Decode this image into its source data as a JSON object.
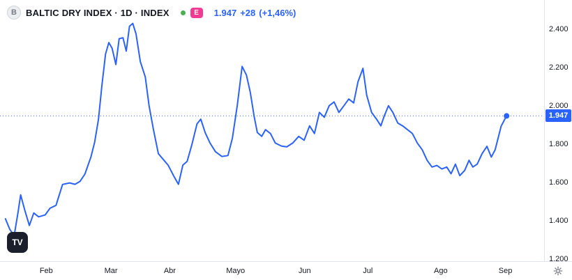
{
  "header": {
    "symbol_badge": "B",
    "title": "BALTIC DRY INDEX · 1D · INDEX",
    "data_flag": "E",
    "price": "1.947",
    "change": "+28",
    "change_pct": "(+1,46%)"
  },
  "watermark": "TV",
  "y_axis": {
    "ticks": [
      {
        "label": "2.400",
        "value": 2400
      },
      {
        "label": "2.200",
        "value": 2200
      },
      {
        "label": "2.000",
        "value": 2000
      },
      {
        "label": "1.800",
        "value": 1800
      },
      {
        "label": "1.600",
        "value": 1600
      },
      {
        "label": "1.400",
        "value": 1400
      },
      {
        "label": "1.200",
        "value": 1200
      }
    ],
    "price_marker": {
      "label": "1.947",
      "value": 1947
    }
  },
  "x_axis": {
    "ticks": [
      {
        "label": "Feb",
        "x": 0.085
      },
      {
        "label": "Mar",
        "x": 0.204
      },
      {
        "label": "Abr",
        "x": 0.312
      },
      {
        "label": "Mayo",
        "x": 0.433
      },
      {
        "label": "Jun",
        "x": 0.56
      },
      {
        "label": "Jul",
        "x": 0.676
      },
      {
        "label": "Ago",
        "x": 0.81
      },
      {
        "label": "Sep",
        "x": 0.929
      }
    ]
  },
  "colors": {
    "accent": "#2962ff",
    "flag": "#f23b95",
    "green": "#4caf50",
    "border": "#e0e3eb",
    "text": "#131722",
    "muted": "#787b86"
  },
  "chart_data": {
    "type": "line",
    "title": "BALTIC DRY INDEX",
    "interval": "1D",
    "market": "INDEX",
    "last_value": 1947,
    "change": 28,
    "change_pct": 1.46,
    "ylim": [
      1200,
      2550
    ],
    "x_categories_visible": [
      "Feb",
      "Mar",
      "Abr",
      "Mayo",
      "Jun",
      "Jul",
      "Ago",
      "Sep"
    ],
    "legend_position": "top-left",
    "grid": false,
    "series": [
      {
        "name": "Baltic Dry Index",
        "points": [
          [
            0.01,
            1410
          ],
          [
            0.018,
            1355
          ],
          [
            0.026,
            1322
          ],
          [
            0.033,
            1440
          ],
          [
            0.038,
            1535
          ],
          [
            0.046,
            1450
          ],
          [
            0.054,
            1375
          ],
          [
            0.062,
            1440
          ],
          [
            0.071,
            1420
          ],
          [
            0.083,
            1430
          ],
          [
            0.092,
            1465
          ],
          [
            0.103,
            1480
          ],
          [
            0.115,
            1589
          ],
          [
            0.128,
            1597
          ],
          [
            0.138,
            1590
          ],
          [
            0.147,
            1605
          ],
          [
            0.156,
            1643
          ],
          [
            0.167,
            1732
          ],
          [
            0.174,
            1810
          ],
          [
            0.181,
            1930
          ],
          [
            0.187,
            2100
          ],
          [
            0.194,
            2270
          ],
          [
            0.2,
            2330
          ],
          [
            0.206,
            2300
          ],
          [
            0.213,
            2215
          ],
          [
            0.219,
            2350
          ],
          [
            0.226,
            2355
          ],
          [
            0.232,
            2285
          ],
          [
            0.238,
            2415
          ],
          [
            0.244,
            2430
          ],
          [
            0.25,
            2375
          ],
          [
            0.258,
            2230
          ],
          [
            0.267,
            2150
          ],
          [
            0.274,
            2000
          ],
          [
            0.282,
            1875
          ],
          [
            0.291,
            1750
          ],
          [
            0.3,
            1720
          ],
          [
            0.309,
            1690
          ],
          [
            0.319,
            1635
          ],
          [
            0.328,
            1590
          ],
          [
            0.336,
            1690
          ],
          [
            0.344,
            1710
          ],
          [
            0.353,
            1800
          ],
          [
            0.362,
            1905
          ],
          [
            0.369,
            1930
          ],
          [
            0.377,
            1860
          ],
          [
            0.386,
            1805
          ],
          [
            0.396,
            1760
          ],
          [
            0.408,
            1735
          ],
          [
            0.419,
            1740
          ],
          [
            0.427,
            1830
          ],
          [
            0.436,
            2000
          ],
          [
            0.445,
            2205
          ],
          [
            0.453,
            2160
          ],
          [
            0.46,
            2070
          ],
          [
            0.467,
            1945
          ],
          [
            0.473,
            1860
          ],
          [
            0.481,
            1840
          ],
          [
            0.488,
            1875
          ],
          [
            0.497,
            1855
          ],
          [
            0.506,
            1805
          ],
          [
            0.517,
            1790
          ],
          [
            0.527,
            1785
          ],
          [
            0.538,
            1805
          ],
          [
            0.549,
            1840
          ],
          [
            0.559,
            1820
          ],
          [
            0.569,
            1895
          ],
          [
            0.578,
            1855
          ],
          [
            0.587,
            1965
          ],
          [
            0.596,
            1940
          ],
          [
            0.605,
            2000
          ],
          [
            0.614,
            2020
          ],
          [
            0.623,
            1965
          ],
          [
            0.632,
            2000
          ],
          [
            0.641,
            2035
          ],
          [
            0.65,
            2015
          ],
          [
            0.658,
            2125
          ],
          [
            0.667,
            2195
          ],
          [
            0.674,
            2055
          ],
          [
            0.683,
            1965
          ],
          [
            0.692,
            1930
          ],
          [
            0.7,
            1895
          ],
          [
            0.706,
            1945
          ],
          [
            0.714,
            2000
          ],
          [
            0.722,
            1965
          ],
          [
            0.731,
            1910
          ],
          [
            0.74,
            1895
          ],
          [
            0.749,
            1875
          ],
          [
            0.758,
            1855
          ],
          [
            0.767,
            1805
          ],
          [
            0.776,
            1770
          ],
          [
            0.785,
            1715
          ],
          [
            0.794,
            1680
          ],
          [
            0.803,
            1688
          ],
          [
            0.812,
            1670
          ],
          [
            0.821,
            1680
          ],
          [
            0.829,
            1645
          ],
          [
            0.837,
            1695
          ],
          [
            0.845,
            1635
          ],
          [
            0.854,
            1662
          ],
          [
            0.862,
            1715
          ],
          [
            0.869,
            1680
          ],
          [
            0.877,
            1695
          ],
          [
            0.886,
            1750
          ],
          [
            0.895,
            1788
          ],
          [
            0.903,
            1732
          ],
          [
            0.91,
            1770
          ],
          [
            0.921,
            1893
          ],
          [
            0.931,
            1947
          ]
        ]
      }
    ]
  }
}
